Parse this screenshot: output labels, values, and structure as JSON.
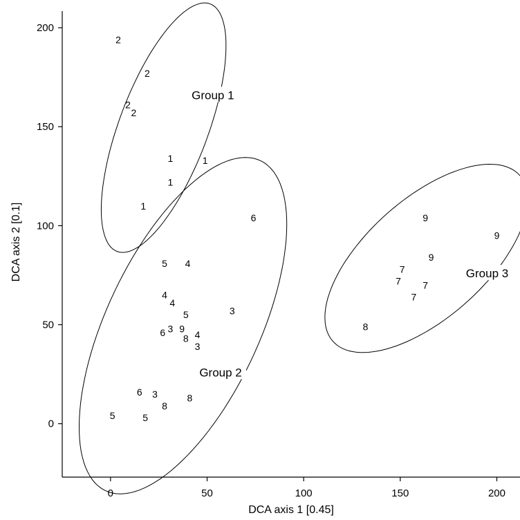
{
  "chart_data": {
    "type": "scatter",
    "title": "",
    "xlabel": "DCA axis 1 [0.45]",
    "ylabel": "DCA axis 2 [0.1]",
    "xlim": [
      -25,
      212
    ],
    "ylim": [
      -27,
      214
    ],
    "xticks": [
      0,
      50,
      100,
      150,
      200
    ],
    "yticks": [
      0,
      50,
      100,
      150,
      200
    ],
    "grid": false,
    "points": [
      {
        "label": "2",
        "x": 4,
        "y": 194
      },
      {
        "label": "2",
        "x": 19,
        "y": 177
      },
      {
        "label": "2",
        "x": 9,
        "y": 161
      },
      {
        "label": "2",
        "x": 12,
        "y": 157
      },
      {
        "label": "1",
        "x": 31,
        "y": 134
      },
      {
        "label": "1",
        "x": 49,
        "y": 133
      },
      {
        "label": "1",
        "x": 31,
        "y": 122
      },
      {
        "label": "1",
        "x": 17,
        "y": 110
      },
      {
        "label": "6",
        "x": 74,
        "y": 104
      },
      {
        "label": "5",
        "x": 28,
        "y": 81
      },
      {
        "label": "4",
        "x": 40,
        "y": 81
      },
      {
        "label": "4",
        "x": 28,
        "y": 65
      },
      {
        "label": "4",
        "x": 32,
        "y": 61
      },
      {
        "label": "5",
        "x": 39,
        "y": 55
      },
      {
        "label": "3",
        "x": 63,
        "y": 57
      },
      {
        "label": "6",
        "x": 27,
        "y": 46
      },
      {
        "label": "3",
        "x": 31,
        "y": 48
      },
      {
        "label": "9",
        "x": 37,
        "y": 48
      },
      {
        "label": "4",
        "x": 45,
        "y": 45
      },
      {
        "label": "8",
        "x": 39,
        "y": 43
      },
      {
        "label": "3",
        "x": 45,
        "y": 39
      },
      {
        "label": "6",
        "x": 15,
        "y": 16
      },
      {
        "label": "3",
        "x": 23,
        "y": 15
      },
      {
        "label": "8",
        "x": 41,
        "y": 13
      },
      {
        "label": "8",
        "x": 28,
        "y": 9
      },
      {
        "label": "5",
        "x": 1,
        "y": 4
      },
      {
        "label": "5",
        "x": 18,
        "y": 3
      },
      {
        "label": "9",
        "x": 163,
        "y": 104
      },
      {
        "label": "9",
        "x": 200,
        "y": 95
      },
      {
        "label": "9",
        "x": 166,
        "y": 84
      },
      {
        "label": "7",
        "x": 151,
        "y": 78
      },
      {
        "label": "7",
        "x": 149,
        "y": 72
      },
      {
        "label": "7",
        "x": 163,
        "y": 70
      },
      {
        "label": "7",
        "x": 157,
        "y": 64
      },
      {
        "label": "8",
        "x": 132,
        "y": 49
      }
    ],
    "groups": [
      {
        "name": "Group 1",
        "label_x": 53,
        "label_y": 166,
        "ellipse": {
          "cx": 27.5,
          "cy": 149.5,
          "rx": 67,
          "ry": 22.9,
          "angle_deg": 68.8
        }
      },
      {
        "name": "Group 2",
        "label_x": 57,
        "label_y": 26,
        "ellipse": {
          "cx": 37.5,
          "cy": 49.5,
          "rx": 92.5,
          "ry": 39.4,
          "angle_deg": 64.1
        }
      },
      {
        "name": "Group 3",
        "label_x": 195,
        "label_y": 76,
        "ellipse": {
          "cx": 163.5,
          "cy": 83.5,
          "rx": 64,
          "ry": 30.4,
          "angle_deg": 40.5
        }
      }
    ]
  }
}
